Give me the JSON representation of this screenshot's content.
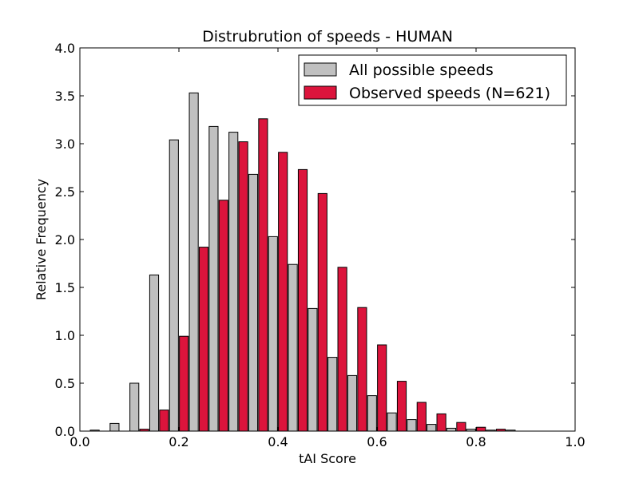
{
  "chart_data": {
    "type": "bar",
    "title": "Distrubrution of speeds - HUMAN",
    "xlabel": "tAI Score",
    "ylabel": "Relative Frequency",
    "xlim": [
      0.0,
      1.0
    ],
    "ylim": [
      0.0,
      4.0
    ],
    "x_ticks": [
      "0.0",
      "0.2",
      "0.4",
      "0.6",
      "0.8",
      "1.0"
    ],
    "y_ticks": [
      "0.0",
      "0.5",
      "1.0",
      "1.5",
      "2.0",
      "2.5",
      "3.0",
      "3.5",
      "4.0"
    ],
    "grid": false,
    "legend_position": "top-right",
    "bin_width": 0.04,
    "x": [
      0.04,
      0.08,
      0.12,
      0.16,
      0.2,
      0.24,
      0.28,
      0.32,
      0.36,
      0.4,
      0.44,
      0.48,
      0.52,
      0.56,
      0.6,
      0.64,
      0.68,
      0.72,
      0.76,
      0.8,
      0.84,
      0.88,
      0.92,
      0.96
    ],
    "series": [
      {
        "name": "All possible speeds",
        "color": "#c0c0c0",
        "values": [
          0.01,
          0.08,
          0.5,
          1.63,
          3.04,
          3.53,
          3.18,
          3.12,
          2.68,
          2.03,
          1.74,
          1.28,
          0.77,
          0.58,
          0.37,
          0.19,
          0.12,
          0.07,
          0.03,
          0.02,
          0.01,
          0.01,
          0.0,
          0.0
        ]
      },
      {
        "name": "Observed speeds (N=621)",
        "color": "#dc143c",
        "values": [
          0.0,
          0.0,
          0.02,
          0.22,
          0.99,
          1.92,
          2.41,
          3.02,
          3.26,
          2.91,
          2.73,
          2.48,
          1.71,
          1.29,
          0.9,
          0.52,
          0.3,
          0.18,
          0.09,
          0.04,
          0.02,
          0.0,
          0.0,
          0.0
        ]
      }
    ]
  }
}
